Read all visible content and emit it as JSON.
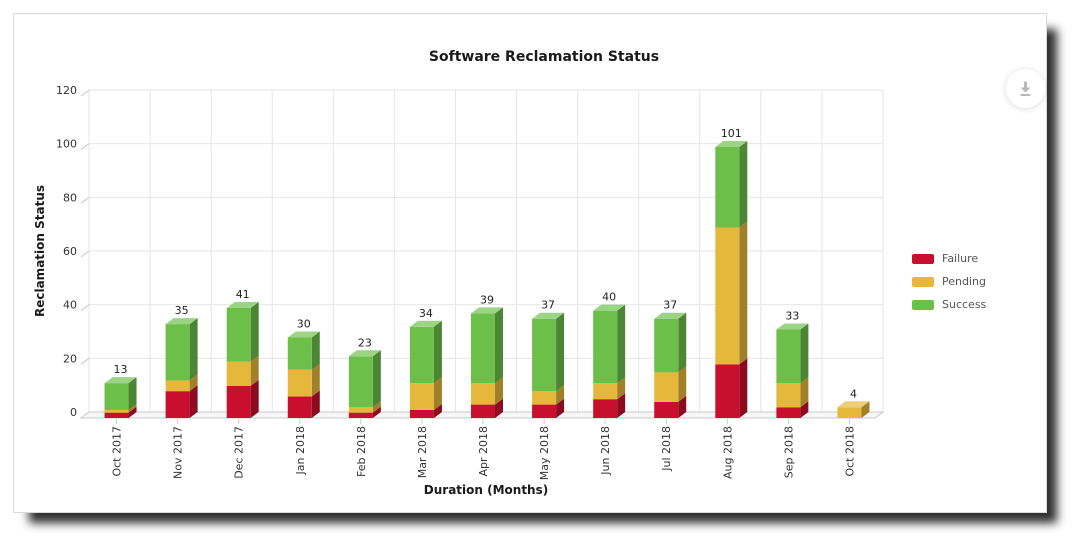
{
  "panel": {
    "background": "#ffffff",
    "border_color": "#d9d9d9"
  },
  "toolbar": {
    "download_icon": "download-icon",
    "icon_color": "#b9b9b9"
  },
  "chart_data": {
    "type": "bar",
    "stacked": true,
    "effect": "3d-column",
    "title": "Software Reclamation Status",
    "xlabel": "Duration (Months)",
    "ylabel": "Reclamation Status",
    "categories": [
      "Oct 2017",
      "Nov 2017",
      "Dec 2017",
      "Jan 2018",
      "Feb 2018",
      "Mar 2018",
      "Apr 2018",
      "May 2018",
      "Jun 2018",
      "Jul 2018",
      "Aug 2018",
      "Sep 2018",
      "Oct 2018"
    ],
    "series": [
      {
        "name": "Failure",
        "color": "#C8102E",
        "values": [
          2,
          10,
          12,
          8,
          2,
          3,
          5,
          5,
          7,
          6,
          20,
          4,
          0
        ]
      },
      {
        "name": "Pending",
        "color": "#E5B73B",
        "values": [
          1,
          4,
          9,
          10,
          2,
          10,
          8,
          5,
          6,
          11,
          51,
          9,
          4
        ]
      },
      {
        "name": "Success",
        "color": "#6CC04A",
        "values": [
          10,
          21,
          20,
          12,
          19,
          21,
          26,
          27,
          27,
          20,
          30,
          20,
          0
        ]
      }
    ],
    "totals": [
      13,
      35,
      41,
      30,
      23,
      34,
      39,
      37,
      40,
      37,
      101,
      33,
      4
    ],
    "ylim": [
      0,
      120
    ],
    "y_ticks": [
      0,
      20,
      40,
      60,
      80,
      100,
      120
    ],
    "grid": true,
    "legend_position": "right",
    "grid_color": "#e6e6e6",
    "axis_color": "#c9c9c9",
    "text_color": "#333333",
    "title_color": "#1a1a1a",
    "value_label_color": "#222222"
  }
}
